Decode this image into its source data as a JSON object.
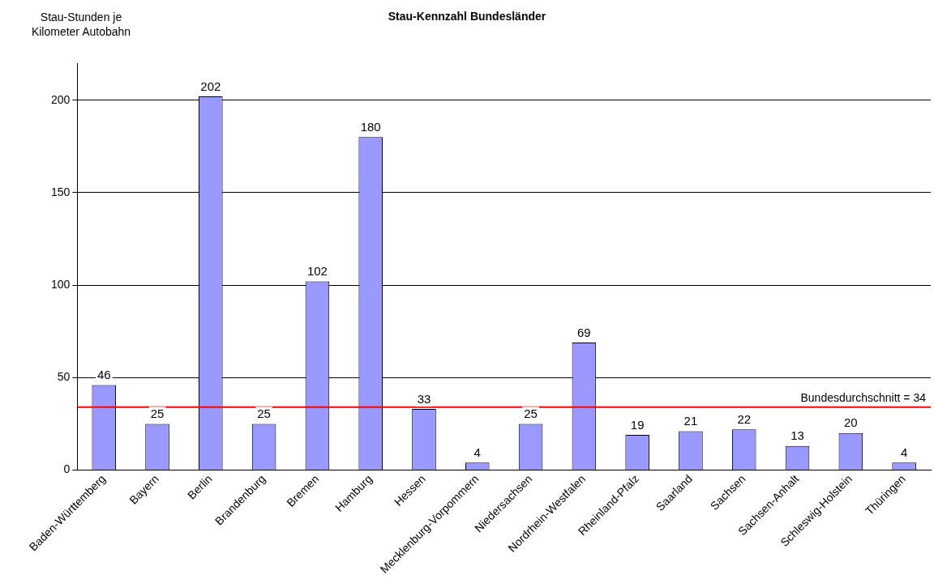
{
  "chart_data": {
    "type": "bar",
    "title": "Stau-Kennzahl Bundesländer",
    "ylabel": "Stau-Stunden je Kilometer Autobahn",
    "categories": [
      "Baden-Württemberg",
      "Bayern",
      "Berlin",
      "Brandenburg",
      "Bremen",
      "Hamburg",
      "Hessen",
      "Mecklenburg-Vorpommern",
      "Niedersachsen",
      "Nordrhein-Westfalen",
      "Rheinland-Pfalz",
      "Saarland",
      "Sachsen",
      "Sachsen-Anhalt",
      "Schleswig-Holstein",
      "Thüringen"
    ],
    "values": [
      46,
      25,
      202,
      25,
      102,
      180,
      33,
      4,
      25,
      69,
      19,
      21,
      22,
      13,
      20,
      4
    ],
    "color": "#9999ff",
    "ylim": [
      0,
      220
    ],
    "yticks": [
      0,
      50,
      100,
      150,
      200
    ],
    "grid": "y",
    "data_labels": true,
    "ref_lines": [
      {
        "axis": "y",
        "value": 34,
        "label": "Bundesdurchschnitt = 34",
        "color": "#ff0000"
      }
    ]
  }
}
